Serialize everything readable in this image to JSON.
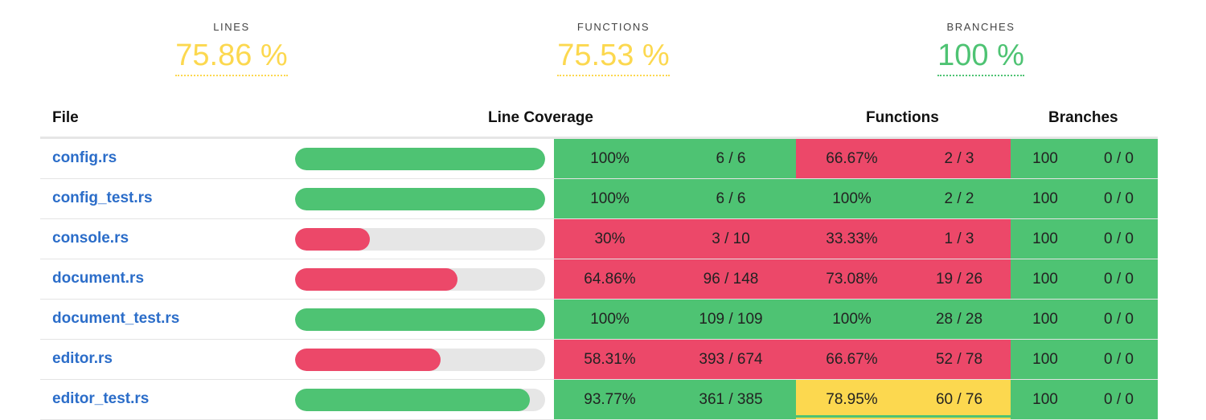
{
  "summary": {
    "lines": {
      "label": "LINES",
      "value": "75.86 %"
    },
    "functions": {
      "label": "FUNCTIONS",
      "value": "75.53 %"
    },
    "branches": {
      "label": "BRANCHES",
      "value": "100 %"
    }
  },
  "headers": {
    "file": "File",
    "line_coverage": "Line Coverage",
    "functions": "Functions",
    "branches": "Branches"
  },
  "colors": {
    "green": "#4ec373",
    "red": "#ec4869",
    "yellow": "#fcd84f",
    "link": "#2b6dc9"
  },
  "rows": [
    {
      "file": "config.rs",
      "line_pct": "100%",
      "lines": "6 / 6",
      "line_fraction": 1.0,
      "line_status": "green",
      "fn_pct": "66.67%",
      "fns": "2 / 3",
      "fn_status": "red",
      "br_pct": "100",
      "brs": "0 / 0",
      "br_status": "green"
    },
    {
      "file": "config_test.rs",
      "line_pct": "100%",
      "lines": "6 / 6",
      "line_fraction": 1.0,
      "line_status": "green",
      "fn_pct": "100%",
      "fns": "2 / 2",
      "fn_status": "green",
      "br_pct": "100",
      "brs": "0 / 0",
      "br_status": "green"
    },
    {
      "file": "console.rs",
      "line_pct": "30%",
      "lines": "3 / 10",
      "line_fraction": 0.3,
      "line_status": "red",
      "fn_pct": "33.33%",
      "fns": "1 / 3",
      "fn_status": "red",
      "br_pct": "100",
      "brs": "0 / 0",
      "br_status": "green"
    },
    {
      "file": "document.rs",
      "line_pct": "64.86%",
      "lines": "96 / 148",
      "line_fraction": 0.6486,
      "line_status": "red",
      "fn_pct": "73.08%",
      "fns": "19 / 26",
      "fn_status": "red",
      "br_pct": "100",
      "brs": "0 / 0",
      "br_status": "green"
    },
    {
      "file": "document_test.rs",
      "line_pct": "100%",
      "lines": "109 / 109",
      "line_fraction": 1.0,
      "line_status": "green",
      "fn_pct": "100%",
      "fns": "28 / 28",
      "fn_status": "green",
      "br_pct": "100",
      "brs": "0 / 0",
      "br_status": "green"
    },
    {
      "file": "editor.rs",
      "line_pct": "58.31%",
      "lines": "393 / 674",
      "line_fraction": 0.5831,
      "line_status": "red",
      "fn_pct": "66.67%",
      "fns": "52 / 78",
      "fn_status": "red",
      "br_pct": "100",
      "brs": "0 / 0",
      "br_status": "green"
    },
    {
      "file": "editor_test.rs",
      "line_pct": "93.77%",
      "lines": "361 / 385",
      "line_fraction": 0.9377,
      "line_status": "green",
      "fn_pct": "78.95%",
      "fns": "60 / 76",
      "fn_status": "yellow",
      "br_pct": "100",
      "brs": "0 / 0",
      "br_status": "green"
    }
  ]
}
